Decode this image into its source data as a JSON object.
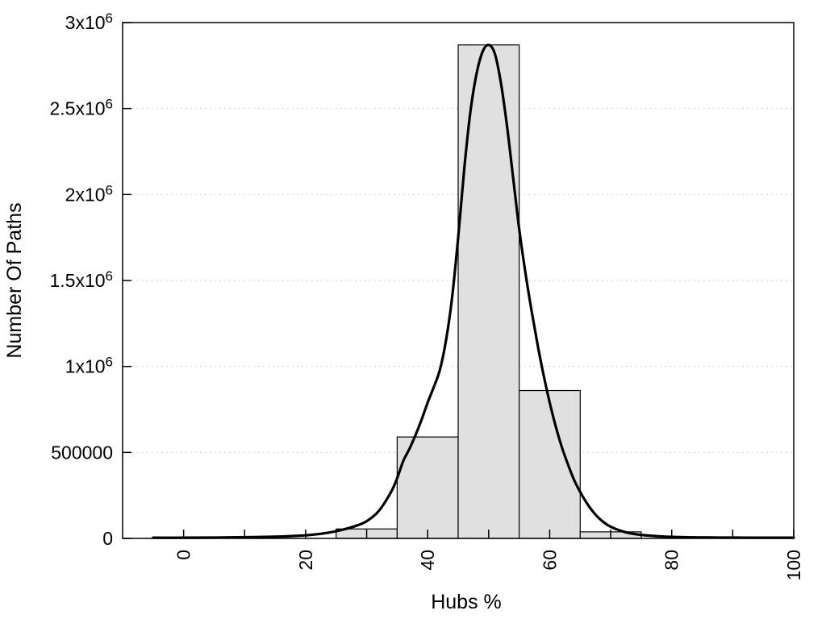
{
  "chart_data": {
    "type": "bar",
    "subtype": "histogram-with-fit-curve",
    "xlabel": "Hubs %",
    "ylabel": "Number Of Paths",
    "xlim": [
      -10,
      100
    ],
    "ylim": [
      0,
      3000000
    ],
    "grid": {
      "horizontal": true,
      "vertical": false,
      "style": "dotted",
      "legend": "none"
    },
    "y_ticks": [
      {
        "value": 0,
        "label": "0",
        "sup": ""
      },
      {
        "value": 500000,
        "label": "500000",
        "sup": ""
      },
      {
        "value": 1000000,
        "label": "1x10",
        "sup": "6"
      },
      {
        "value": 1500000,
        "label": "1.5x10",
        "sup": "6"
      },
      {
        "value": 2000000,
        "label": "2x10",
        "sup": "6"
      },
      {
        "value": 2500000,
        "label": "2.5x10",
        "sup": "6"
      },
      {
        "value": 3000000,
        "label": "3x10",
        "sup": "6"
      }
    ],
    "x_ticks": [
      {
        "value": 0,
        "label": "0"
      },
      {
        "value": 20,
        "label": "20"
      },
      {
        "value": 40,
        "label": "40"
      },
      {
        "value": 60,
        "label": "60"
      },
      {
        "value": 80,
        "label": "80"
      },
      {
        "value": 100,
        "label": "100"
      }
    ],
    "x_minor_ticks": [
      10,
      30,
      50,
      70,
      90
    ],
    "x_tick_label_rotation_deg": -90,
    "histogram": {
      "bin_width": 10,
      "bins": [
        {
          "center": 30,
          "range": "25-35",
          "count": 55000
        },
        {
          "center": 40,
          "range": "35-45",
          "count": 590000
        },
        {
          "center": 50,
          "range": "45-55",
          "count": 2870000
        },
        {
          "center": 60,
          "range": "55-65",
          "count": 860000
        },
        {
          "center": 70,
          "range": "65-75",
          "count": 38000
        }
      ]
    },
    "fit_curve": {
      "name": "bell-fit",
      "peak_x": 50,
      "peak_y": 2870000,
      "points": [
        [
          -5,
          4000
        ],
        [
          0,
          4000
        ],
        [
          5,
          5000
        ],
        [
          10,
          7000
        ],
        [
          15,
          10000
        ],
        [
          18,
          14000
        ],
        [
          20,
          18000
        ],
        [
          22,
          25000
        ],
        [
          24,
          35000
        ],
        [
          26,
          50000
        ],
        [
          28,
          70000
        ],
        [
          30,
          100000
        ],
        [
          32,
          160000
        ],
        [
          34,
          270000
        ],
        [
          35,
          350000
        ],
        [
          36,
          450000
        ],
        [
          37,
          520000
        ],
        [
          38,
          600000
        ],
        [
          39,
          690000
        ],
        [
          40,
          790000
        ],
        [
          41,
          880000
        ],
        [
          42,
          980000
        ],
        [
          43,
          1150000
        ],
        [
          44,
          1400000
        ],
        [
          45,
          1750000
        ],
        [
          46,
          2150000
        ],
        [
          47,
          2480000
        ],
        [
          48,
          2700000
        ],
        [
          49,
          2830000
        ],
        [
          50,
          2870000
        ],
        [
          51,
          2820000
        ],
        [
          52,
          2650000
        ],
        [
          53,
          2400000
        ],
        [
          54,
          2100000
        ],
        [
          55,
          1800000
        ],
        [
          56,
          1550000
        ],
        [
          57,
          1330000
        ],
        [
          58,
          1130000
        ],
        [
          59,
          950000
        ],
        [
          60,
          790000
        ],
        [
          61,
          650000
        ],
        [
          62,
          530000
        ],
        [
          63,
          430000
        ],
        [
          64,
          340000
        ],
        [
          65,
          270000
        ],
        [
          66,
          210000
        ],
        [
          67,
          160000
        ],
        [
          68,
          120000
        ],
        [
          69,
          90000
        ],
        [
          70,
          68000
        ],
        [
          72,
          40000
        ],
        [
          74,
          25000
        ],
        [
          76,
          17000
        ],
        [
          78,
          12000
        ],
        [
          80,
          9000
        ],
        [
          84,
          6000
        ],
        [
          88,
          5000
        ],
        [
          92,
          4500
        ],
        [
          96,
          4000
        ],
        [
          100,
          4000
        ]
      ]
    },
    "colors": {
      "bar_fill": "#e0e0e0",
      "bar_stroke": "#000000",
      "curve": "#000000",
      "grid": "#c9c9c9",
      "axis": "#000000",
      "text": "#000000",
      "background": "#ffffff"
    }
  }
}
